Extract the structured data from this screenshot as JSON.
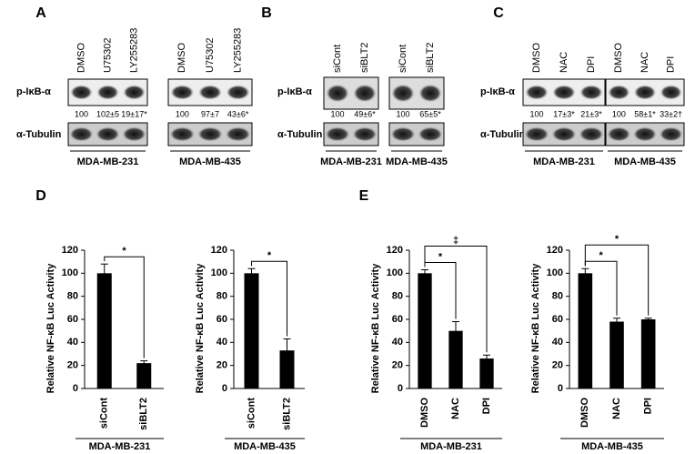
{
  "blots": [
    {
      "letter": "A",
      "rows": [
        "p-IκB-α",
        "α-Tubulin"
      ],
      "groups": [
        {
          "lanes": [
            "DMSO",
            "U75302",
            "LY255283"
          ],
          "quant": [
            "100",
            "102±5",
            "19±17*"
          ],
          "cell": "MDA-MB-231"
        },
        {
          "lanes": [
            "DMSO",
            "U75302",
            "LY255283"
          ],
          "quant": [
            "100",
            "97±7",
            "43±6*"
          ],
          "cell": "MDA-MB-435"
        }
      ]
    },
    {
      "letter": "B",
      "rows": [
        "p-IκB-α",
        "α-Tubulin"
      ],
      "groups": [
        {
          "lanes": [
            "siCont",
            "siBLT2"
          ],
          "quant": [
            "100",
            "49±6*"
          ],
          "cell": "MDA-MB-231"
        },
        {
          "lanes": [
            "siCont",
            "siBLT2"
          ],
          "quant": [
            "100",
            "65±5*"
          ],
          "cell": "MDA-MB-435"
        }
      ]
    },
    {
      "letter": "C",
      "rows": [
        "p-IκB-α",
        "α-Tubulin"
      ],
      "groups": [
        {
          "lanes": [
            "DMSO",
            "NAC",
            "DPI"
          ],
          "quant": [
            "100",
            "17±3*",
            "21±3*"
          ],
          "cell": "MDA-MB-231"
        },
        {
          "lanes": [
            "DMSO",
            "NAC",
            "DPI"
          ],
          "quant": [
            "100",
            "58±1*",
            "33±2†"
          ],
          "cell": "MDA-MB-435"
        }
      ]
    }
  ],
  "chart_data": [
    {
      "type": "bar",
      "panel": "D",
      "ylabel": "Relative NF-κB Luc Activity",
      "xlabel": "MDA-MB-231",
      "categories": [
        "siCont",
        "siBLT2"
      ],
      "values": [
        100,
        22
      ],
      "errors": [
        8,
        2
      ],
      "color": "#000000",
      "ylim": [
        0,
        120
      ],
      "yticks": [
        0,
        20,
        40,
        60,
        80,
        100,
        120
      ],
      "annotations": [
        {
          "label": "*",
          "categories": [
            "siCont",
            "siBLT2"
          ]
        }
      ]
    },
    {
      "type": "bar",
      "ylabel": "Relative NF-κB Luc Activity",
      "xlabel": "MDA-MB-435",
      "categories": [
        "siCont",
        "siBLT2"
      ],
      "values": [
        100,
        33
      ],
      "errors": [
        4,
        10
      ],
      "color": "#000000",
      "ylim": [
        0,
        120
      ],
      "yticks": [
        0,
        20,
        40,
        60,
        80,
        100,
        120
      ],
      "annotations": [
        {
          "label": "*",
          "categories": [
            "siCont",
            "siBLT2"
          ]
        }
      ]
    },
    {
      "type": "bar",
      "panel": "E",
      "ylabel": "Relative NF-κB Luc Activity",
      "xlabel": "MDA-MB-231",
      "categories": [
        "DMSO",
        "NAC",
        "DPI"
      ],
      "values": [
        100,
        50,
        26
      ],
      "errors": [
        3,
        8,
        3
      ],
      "color": "#000000",
      "ylim": [
        0,
        120
      ],
      "yticks": [
        0,
        20,
        40,
        60,
        80,
        100,
        120
      ],
      "annotations": [
        {
          "label": "*",
          "categories": [
            "DMSO",
            "NAC"
          ]
        },
        {
          "label": "‡",
          "categories": [
            "DMSO",
            "DPI"
          ]
        }
      ]
    },
    {
      "type": "bar",
      "ylabel": "Relative NF-κB Luc Activity",
      "xlabel": "MDA-MB-435",
      "categories": [
        "DMSO",
        "NAC",
        "DPI"
      ],
      "values": [
        100,
        58,
        60
      ],
      "errors": [
        4,
        3,
        1
      ],
      "color": "#000000",
      "ylim": [
        0,
        120
      ],
      "yticks": [
        0,
        20,
        40,
        60,
        80,
        100,
        120
      ],
      "annotations": [
        {
          "label": "*",
          "categories": [
            "DMSO",
            "NAC"
          ]
        },
        {
          "label": "*",
          "categories": [
            "DMSO",
            "DPI"
          ]
        }
      ]
    }
  ]
}
